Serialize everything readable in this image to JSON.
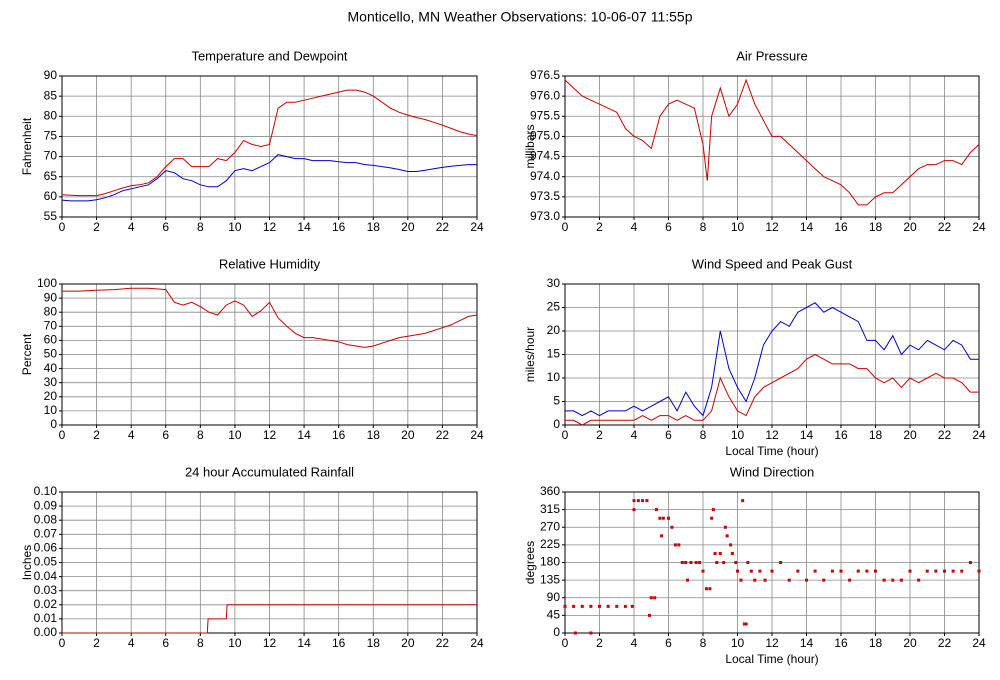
{
  "title": "Monticello, MN Weather Observations: 10-06-07 11:55p",
  "chart_data": [
    {
      "type": "line",
      "title": "Temperature and Dewpoint",
      "ylabel": "Fahrenheit",
      "x": [
        0,
        0.5,
        1,
        1.5,
        2,
        2.5,
        3,
        3.5,
        4,
        4.5,
        5,
        5.5,
        6,
        6.5,
        7,
        7.5,
        8,
        8.5,
        9,
        9.5,
        10,
        10.5,
        11,
        11.5,
        12,
        12.5,
        13,
        13.5,
        14,
        14.5,
        15,
        15.5,
        16,
        16.5,
        17,
        17.5,
        18,
        18.5,
        19,
        19.5,
        20,
        20.5,
        21,
        21.5,
        22,
        22.5,
        23,
        23.5,
        24
      ],
      "series": [
        {
          "color": "#cc0000",
          "values": [
            60.5,
            60.4,
            60.3,
            60.3,
            60.3,
            60.8,
            61.5,
            62.2,
            62.8,
            63,
            63.5,
            65,
            67.5,
            69.5,
            69.5,
            67.5,
            67.5,
            67.5,
            69.5,
            69,
            71,
            74,
            73,
            72.5,
            73,
            82,
            83.5,
            83.5,
            84,
            84.5,
            85,
            85.5,
            86,
            86.5,
            86.5,
            86,
            85,
            83.5,
            82,
            81,
            80.3,
            79.7,
            79.2,
            78.5,
            77.8,
            77,
            76.2,
            75.6,
            75.2
          ]
        },
        {
          "color": "#0000cc",
          "values": [
            59.2,
            59,
            59,
            59,
            59.3,
            59.8,
            60.5,
            61.5,
            62,
            62.5,
            63,
            64.5,
            66.5,
            66,
            64.5,
            64,
            63,
            62.5,
            62.5,
            64,
            66.5,
            67,
            66.5,
            67.5,
            68.5,
            70.5,
            70,
            69.5,
            69.5,
            69,
            69,
            69,
            68.7,
            68.5,
            68.5,
            68,
            67.8,
            67.5,
            67.2,
            66.8,
            66.3,
            66.3,
            66.6,
            67,
            67.3,
            67.6,
            67.8,
            68,
            68
          ]
        }
      ],
      "xlim": [
        0,
        24
      ],
      "xticks": [
        0,
        2,
        4,
        6,
        8,
        10,
        12,
        14,
        16,
        18,
        20,
        22,
        24
      ],
      "ylim": [
        55,
        90
      ],
      "yticks": [
        55,
        60,
        65,
        70,
        75,
        80,
        85,
        90
      ],
      "grid": true
    },
    {
      "type": "line",
      "title": "Air Pressure",
      "ylabel": "millibars",
      "x": [
        0,
        0.5,
        1,
        1.5,
        2,
        2.5,
        3,
        3.5,
        4,
        4.5,
        5,
        5.5,
        6,
        6.5,
        7,
        7.5,
        8,
        8.25,
        8.5,
        9,
        9.5,
        10,
        10.5,
        11,
        11.5,
        12,
        12.5,
        13,
        13.5,
        14,
        14.5,
        15,
        15.5,
        16,
        16.5,
        17,
        17.5,
        18,
        18.5,
        19,
        19.5,
        20,
        20.5,
        21,
        21.5,
        22,
        22.5,
        23,
        23.5,
        24
      ],
      "series": [
        {
          "color": "#cc0000",
          "values": [
            976.4,
            976.2,
            976.0,
            975.9,
            975.8,
            975.7,
            975.6,
            975.2,
            975.0,
            974.9,
            974.7,
            975.5,
            975.8,
            975.9,
            975.8,
            975.7,
            974.8,
            973.9,
            975.5,
            976.2,
            975.5,
            975.8,
            976.4,
            975.8,
            975.4,
            975.0,
            975.0,
            974.8,
            974.6,
            974.4,
            974.2,
            974.0,
            973.9,
            973.8,
            973.6,
            973.3,
            973.3,
            973.5,
            973.6,
            973.6,
            973.8,
            974.0,
            974.2,
            974.3,
            974.3,
            974.4,
            974.4,
            974.3,
            974.6,
            974.8
          ]
        }
      ],
      "xlim": [
        0,
        24
      ],
      "xticks": [
        0,
        2,
        4,
        6,
        8,
        10,
        12,
        14,
        16,
        18,
        20,
        22,
        24
      ],
      "ylim": [
        973,
        976.5
      ],
      "yticks": [
        {
          "value": 973,
          "label": "973.0"
        },
        973.5,
        {
          "value": 974,
          "label": "974.0"
        },
        974.5,
        {
          "value": 975,
          "label": "975.0"
        },
        975.5,
        {
          "value": 976,
          "label": "976.0"
        },
        976.5
      ],
      "grid": true
    },
    {
      "type": "line",
      "title": "Relative Humidity",
      "ylabel": "Percent",
      "x": [
        0,
        1,
        2,
        3,
        4,
        5,
        6,
        6.5,
        7,
        7.5,
        8,
        8.5,
        9,
        9.5,
        10,
        10.5,
        11,
        11.5,
        12,
        12.5,
        13,
        13.5,
        14,
        14.5,
        15,
        15.5,
        16,
        16.5,
        17,
        17.5,
        18,
        18.5,
        19,
        19.5,
        20,
        20.5,
        21,
        21.5,
        22,
        22.5,
        23,
        23.5,
        24
      ],
      "series": [
        {
          "color": "#cc0000",
          "values": [
            95,
            95,
            95.5,
            96,
            97,
            97,
            96,
            87,
            85,
            87,
            84,
            80,
            78,
            85,
            88,
            85,
            77,
            81,
            87,
            76,
            70,
            65,
            62,
            62,
            61,
            60,
            59,
            57,
            56,
            55,
            56,
            58,
            60,
            62,
            63,
            64,
            65,
            67,
            69,
            71,
            74,
            77,
            78
          ]
        }
      ],
      "xlim": [
        0,
        24
      ],
      "xticks": [
        0,
        2,
        4,
        6,
        8,
        10,
        12,
        14,
        16,
        18,
        20,
        22,
        24
      ],
      "ylim": [
        0,
        100
      ],
      "yticks": [
        0,
        10,
        20,
        30,
        40,
        50,
        60,
        70,
        80,
        90,
        100
      ],
      "grid": true
    },
    {
      "type": "line",
      "title": "Wind Speed and Peak Gust",
      "ylabel": "miles/hour",
      "xlabel": "Local Time (hour)",
      "x": [
        0,
        0.5,
        1,
        1.5,
        2,
        2.5,
        3,
        3.5,
        4,
        4.5,
        5,
        5.5,
        6,
        6.5,
        7,
        7.5,
        8,
        8.5,
        9,
        9.5,
        10,
        10.5,
        11,
        11.5,
        12,
        12.5,
        13,
        13.5,
        14,
        14.5,
        15,
        15.5,
        16,
        16.5,
        17,
        17.5,
        18,
        18.5,
        19,
        19.5,
        20,
        20.5,
        21,
        21.5,
        22,
        22.5,
        23,
        23.5,
        24
      ],
      "series": [
        {
          "color": "#0000cc",
          "values": [
            3,
            3,
            2,
            3,
            2,
            3,
            3,
            3,
            4,
            3,
            4,
            5,
            6,
            3,
            7,
            4,
            2,
            8,
            20,
            12,
            8,
            5,
            10,
            17,
            20,
            22,
            21,
            24,
            25,
            26,
            24,
            25,
            24,
            23,
            22,
            18,
            18,
            16,
            19,
            15,
            17,
            16,
            18,
            17,
            16,
            18,
            17,
            14,
            14
          ]
        },
        {
          "color": "#cc0000",
          "values": [
            1,
            1,
            0,
            1,
            1,
            1,
            1,
            1,
            1,
            2,
            1,
            2,
            2,
            1,
            2,
            1,
            1,
            3,
            10,
            6,
            3,
            2,
            6,
            8,
            9,
            10,
            11,
            12,
            14,
            15,
            14,
            13,
            13,
            13,
            12,
            12,
            10,
            9,
            10,
            8,
            10,
            9,
            10,
            11,
            10,
            10,
            9,
            7,
            7
          ]
        }
      ],
      "xlim": [
        0,
        24
      ],
      "xticks": [
        0,
        2,
        4,
        6,
        8,
        10,
        12,
        14,
        16,
        18,
        20,
        22,
        24
      ],
      "ylim": [
        0,
        30
      ],
      "yticks": [
        0,
        5,
        10,
        15,
        20,
        25,
        30
      ],
      "grid": true
    },
    {
      "type": "line",
      "title": "24 hour Accumulated Rainfall",
      "ylabel": "Inches",
      "x": [
        0,
        8.4,
        8.45,
        9.5,
        9.55,
        24
      ],
      "series": [
        {
          "color": "#cc0000",
          "values": [
            0,
            0,
            0.01,
            0.01,
            0.02,
            0.02
          ]
        }
      ],
      "xlim": [
        0,
        24
      ],
      "xticks": [
        0,
        2,
        4,
        6,
        8,
        10,
        12,
        14,
        16,
        18,
        20,
        22,
        24
      ],
      "ylim": [
        0,
        0.1
      ],
      "yticks": [
        {
          "value": 0,
          "label": "0.00"
        },
        0.01,
        0.02,
        0.03,
        0.04,
        0.05,
        0.06,
        0.07,
        0.08,
        0.09,
        {
          "value": 0.1,
          "label": "0.10"
        }
      ],
      "grid": true
    },
    {
      "type": "scatter",
      "title": "Wind Direction",
      "ylabel": "degrees",
      "xlabel": "Local Time (hour)",
      "x": [
        0,
        0.5,
        1,
        1.5,
        2,
        2.5,
        3,
        3.5,
        3.9,
        0.6,
        1.5,
        4,
        4.25,
        4.5,
        4.75,
        4,
        4.9,
        5,
        5.2,
        5.3,
        5.5,
        5.7,
        6,
        5.6,
        6.2,
        6.4,
        6.6,
        6.8,
        7,
        7.1,
        7.3,
        7.6,
        7.8,
        8,
        8.2,
        8.4,
        8.5,
        8.6,
        8.7,
        9,
        8.8,
        9.2,
        9.3,
        9.4,
        9.6,
        9.7,
        9.9,
        10,
        10.2,
        10.3,
        10.4,
        10.5,
        10.6,
        10.8,
        11,
        11.3,
        11.6,
        12,
        12.5,
        13,
        13.5,
        14,
        14.5,
        15,
        15.5,
        16,
        16.5,
        17,
        17.5,
        18,
        18.5,
        19,
        19.5,
        20,
        20.5,
        21,
        21.5,
        22,
        22.5,
        23,
        23.5,
        24
      ],
      "values": [
        68,
        68,
        68,
        68,
        68,
        68,
        68,
        68,
        68,
        0,
        0,
        338,
        338,
        338,
        338,
        315,
        45,
        90,
        90,
        315,
        293,
        293,
        293,
        248,
        270,
        225,
        225,
        180,
        180,
        135,
        180,
        180,
        180,
        158,
        113,
        113,
        293,
        315,
        203,
        203,
        180,
        180,
        270,
        248,
        225,
        203,
        180,
        158,
        135,
        338,
        23,
        23,
        180,
        158,
        135,
        158,
        135,
        158,
        180,
        135,
        158,
        135,
        158,
        135,
        158,
        158,
        135,
        158,
        158,
        158,
        135,
        135,
        135,
        158,
        135,
        158,
        158,
        158,
        158,
        158,
        180,
        158
      ],
      "color": "#cc0000",
      "xlim": [
        0,
        24
      ],
      "xticks": [
        0,
        2,
        4,
        6,
        8,
        10,
        12,
        14,
        16,
        18,
        20,
        22,
        24
      ],
      "ylim": [
        0,
        360
      ],
      "yticks": [
        0,
        45,
        90,
        135,
        180,
        225,
        270,
        315,
        360
      ],
      "grid": true
    }
  ]
}
